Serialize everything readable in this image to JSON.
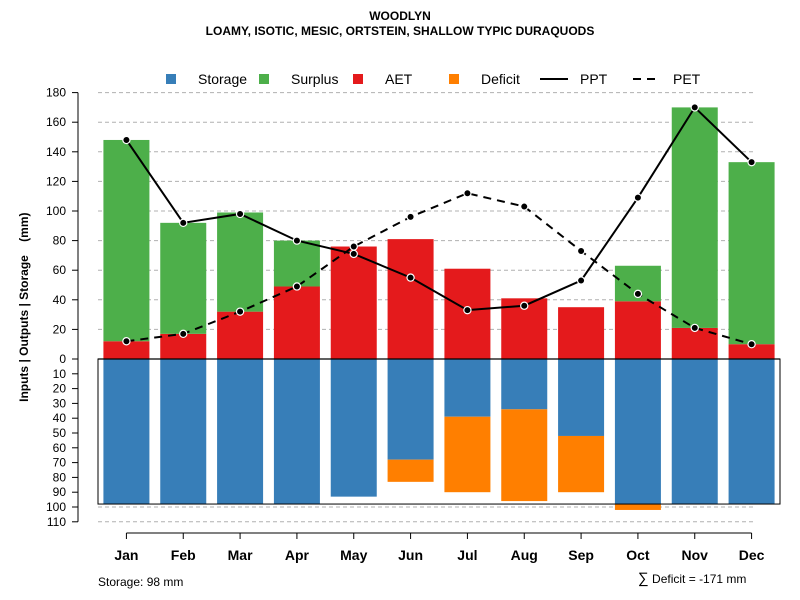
{
  "chart_data": {
    "type": "bar",
    "title": "WOODLYN",
    "subtitle": "LOAMY, ISOTIC, MESIC, ORTSTEIN, SHALLOW TYPIC DURAQUODS",
    "ylabel": "Inputs | Outputs | Storage    (mm)",
    "categories": [
      "Jan",
      "Feb",
      "Mar",
      "Apr",
      "May",
      "Jun",
      "Jul",
      "Aug",
      "Sep",
      "Oct",
      "Nov",
      "Dec"
    ],
    "upper_ylim": [
      0,
      180
    ],
    "upper_ticks": [
      0,
      20,
      40,
      60,
      80,
      100,
      120,
      140,
      160,
      180
    ],
    "lower_ylim": [
      0,
      110
    ],
    "lower_ticks": [
      10,
      20,
      30,
      40,
      50,
      60,
      70,
      80,
      90,
      100,
      110
    ],
    "series": [
      {
        "name": "AET",
        "color": "#E41A1C",
        "values": [
          12,
          17,
          32,
          49,
          76,
          81,
          61,
          41,
          35,
          39,
          21,
          10
        ]
      },
      {
        "name": "Surplus",
        "color": "#4DAF4A",
        "values": [
          136,
          75,
          67,
          31,
          0,
          0,
          0,
          0,
          0,
          24,
          149,
          123
        ]
      },
      {
        "name": "Storage",
        "color": "#377EB8",
        "values": [
          98,
          98,
          98,
          98,
          93,
          68,
          39,
          34,
          52,
          98,
          98,
          98
        ]
      },
      {
        "name": "Deficit",
        "color": "#FF7F00",
        "values": [
          0,
          0,
          0,
          0,
          0,
          15,
          51,
          62,
          38,
          4,
          0,
          0
        ]
      },
      {
        "name": "PPT",
        "color": "#000000",
        "style": "solid",
        "values": [
          148,
          92,
          98,
          80,
          71,
          55,
          33,
          36,
          53,
          109,
          170,
          133
        ]
      },
      {
        "name": "PET",
        "color": "#000000",
        "style": "dashed",
        "values": [
          12,
          17,
          32,
          49,
          76,
          96,
          112,
          103,
          73,
          44,
          21,
          10
        ]
      }
    ],
    "legend": [
      "Storage",
      "Surplus",
      "AET",
      "Deficit",
      "PPT",
      "PET"
    ],
    "legend_position": "top",
    "grid": true,
    "storage_note": "Storage: 98 mm",
    "deficit_label": "Deficit = -171 mm",
    "deficit_symbol": "∑"
  }
}
